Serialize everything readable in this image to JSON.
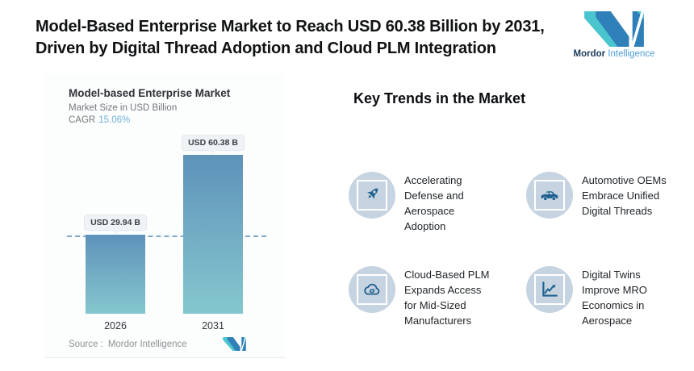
{
  "header": {
    "title": "Model-Based Enterprise Market to Reach USD 60.38 Billion by 2031,\nDriven by Digital Thread Adoption and Cloud PLM Integration"
  },
  "brand": {
    "name_bold": "Mordor",
    "name_light": "Intelligence"
  },
  "chart": {
    "title": "Model-based Enterprise Market",
    "subtitle": "Market Size in USD Billion",
    "cagr_label": "CAGR",
    "cagr_value": "15.06%",
    "source_label": "Source :",
    "source_value": "Mordor Intelligence"
  },
  "chart_data": {
    "type": "bar",
    "title": "Model-based Enterprise Market",
    "ylabel": "Market Size in USD Billion",
    "categories": [
      "2026",
      "2031"
    ],
    "values": [
      29.94,
      60.38
    ],
    "value_labels": [
      "USD 29.94 B",
      "USD 60.38 B"
    ],
    "cagr_pct": 15.06,
    "reference_line": 29.94,
    "ylim": [
      0,
      60.38
    ],
    "grid": false,
    "legend": "none",
    "bar_gradient_top": "#5e92ba",
    "bar_gradient_bottom": "#85c7ce"
  },
  "trends": {
    "heading": "Key Trends in the Market",
    "items": [
      {
        "icon": "rocket-icon",
        "text": "Accelerating\nDefense and\nAerospace\nAdoption"
      },
      {
        "icon": "car-icon",
        "text": "Automotive OEMs\nEmbrace Unified\nDigital Threads"
      },
      {
        "icon": "cloud-sync-icon",
        "text": "Cloud-Based PLM\nExpands Access\nfor Mid-Sized\nManufacturers"
      },
      {
        "icon": "chart-growth-icon",
        "text": "Digital Twins\nImprove MRO\nEconomics in\nAerospace"
      }
    ]
  },
  "colors": {
    "brand_teal": "#4ac4cd",
    "brand_blue": "#2f80b9",
    "brand_text_dark": "#1b3b5c",
    "brand_text_light": "#4d9ed6",
    "bar_gradient_top": "#5e92ba",
    "bar_gradient_bottom": "#85c7ce",
    "dashed_line": "#7ea6c6",
    "cagr_value": "#6fb0d8",
    "bubble_bg": "#eff3f5",
    "icon_circle_bg": "#c6d3e0",
    "icon_glyph": "#1e618e"
  }
}
